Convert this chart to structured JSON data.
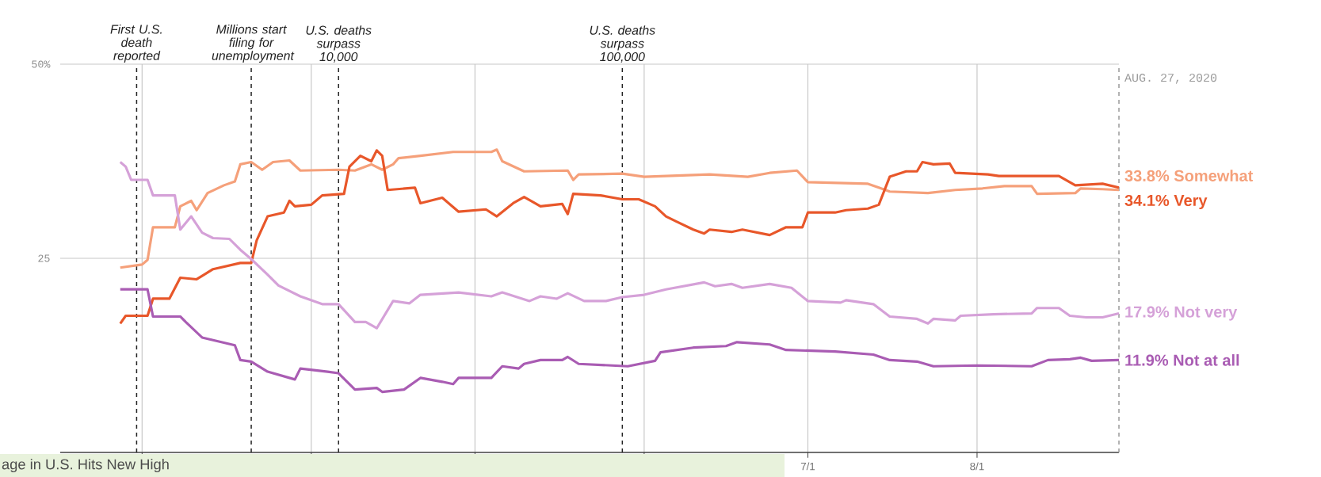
{
  "chart_data": {
    "type": "line",
    "xlim": [
      "2020-02-15",
      "2020-08-27"
    ],
    "ylim": [
      0,
      50
    ],
    "xticks": [
      {
        "value": "2020-03-01",
        "label": null
      },
      {
        "value": "2020-04-01",
        "label": null
      },
      {
        "value": "2020-05-01",
        "label": null
      },
      {
        "value": "2020-06-01",
        "label": null
      },
      {
        "value": "2020-07-01",
        "label": "7/1"
      },
      {
        "value": "2020-08-01",
        "label": "8/1"
      }
    ],
    "yticks": [
      {
        "value": 25,
        "label": "25"
      },
      {
        "value": 50,
        "label": "50%"
      }
    ],
    "grid": true,
    "series": [
      {
        "name": "Somewhat",
        "color": "#f5a07a",
        "x": [
          "2020-02-26",
          "2020-03-01",
          "2020-03-02",
          "2020-03-03",
          "2020-03-07",
          "2020-03-08",
          "2020-03-10",
          "2020-03-11",
          "2020-03-13",
          "2020-03-16",
          "2020-03-18",
          "2020-03-19",
          "2020-03-21",
          "2020-03-23",
          "2020-03-25",
          "2020-03-28",
          "2020-03-30",
          "2020-04-06",
          "2020-04-09",
          "2020-04-12",
          "2020-04-14",
          "2020-04-16",
          "2020-04-17",
          "2020-04-21",
          "2020-04-27",
          "2020-05-04",
          "2020-05-05",
          "2020-05-06",
          "2020-05-10",
          "2020-05-18",
          "2020-05-19",
          "2020-05-20",
          "2020-05-28",
          "2020-06-01",
          "2020-06-13",
          "2020-06-20",
          "2020-06-24",
          "2020-06-29",
          "2020-07-01",
          "2020-07-12",
          "2020-07-14",
          "2020-07-16",
          "2020-07-23",
          "2020-07-28",
          "2020-08-02",
          "2020-08-06",
          "2020-08-11",
          "2020-08-12",
          "2020-08-19",
          "2020-08-20",
          "2020-08-24",
          "2020-08-27"
        ],
        "values": [
          23.8,
          24.2,
          24.8,
          29.0,
          29.0,
          31.7,
          32.4,
          31.2,
          33.4,
          34.4,
          34.9,
          37.1,
          37.4,
          36.4,
          37.4,
          37.6,
          36.3,
          36.4,
          36.3,
          37.1,
          36.4,
          37.1,
          37.9,
          38.2,
          38.7,
          38.7,
          39.0,
          37.5,
          36.2,
          36.3,
          35.1,
          35.8,
          35.9,
          35.5,
          35.8,
          35.5,
          36.0,
          36.3,
          34.8,
          34.6,
          34.1,
          33.6,
          33.4,
          33.8,
          34.0,
          34.3,
          34.3,
          33.3,
          33.4,
          34.0,
          33.9,
          33.8
        ],
        "value_labels": [
          null,
          null,
          null,
          null,
          null,
          null,
          null,
          null,
          null,
          null,
          null,
          null,
          null,
          null,
          null,
          null,
          null,
          null,
          null,
          null,
          null,
          null,
          null,
          null,
          null,
          null,
          null,
          null,
          null,
          null,
          null,
          null,
          null,
          null,
          null,
          null,
          null,
          null,
          null,
          null,
          null,
          null,
          null,
          null,
          null,
          null,
          null,
          null,
          null,
          null,
          null,
          "33.8%"
        ]
      },
      {
        "name": "Very",
        "color": "#e8572a",
        "x": [
          "2020-02-26",
          "2020-02-27",
          "2020-03-02",
          "2020-03-03",
          "2020-03-06",
          "2020-03-08",
          "2020-03-11",
          "2020-03-14",
          "2020-03-19",
          "2020-03-21",
          "2020-03-22",
          "2020-03-24",
          "2020-03-27",
          "2020-03-28",
          "2020-03-29",
          "2020-04-01",
          "2020-04-03",
          "2020-04-07",
          "2020-04-08",
          "2020-04-10",
          "2020-04-12",
          "2020-04-13",
          "2020-04-14",
          "2020-04-15",
          "2020-04-20",
          "2020-04-21",
          "2020-04-25",
          "2020-04-28",
          "2020-05-03",
          "2020-05-05",
          "2020-05-08",
          "2020-05-10",
          "2020-05-13",
          "2020-05-17",
          "2020-05-18",
          "2020-05-19",
          "2020-05-24",
          "2020-05-28",
          "2020-05-31",
          "2020-06-03",
          "2020-06-05",
          "2020-06-07",
          "2020-06-10",
          "2020-06-12",
          "2020-06-13",
          "2020-06-17",
          "2020-06-19",
          "2020-06-24",
          "2020-06-27",
          "2020-06-30",
          "2020-07-01",
          "2020-07-06",
          "2020-07-08",
          "2020-07-12",
          "2020-07-14",
          "2020-07-16",
          "2020-07-19",
          "2020-07-21",
          "2020-07-22",
          "2020-07-24",
          "2020-07-27",
          "2020-07-28",
          "2020-08-03",
          "2020-08-05",
          "2020-08-16",
          "2020-08-19",
          "2020-08-24",
          "2020-08-27"
        ],
        "values": [
          16.6,
          17.6,
          17.6,
          19.8,
          19.8,
          22.5,
          22.3,
          23.6,
          24.4,
          24.4,
          27.3,
          30.4,
          30.9,
          32.4,
          31.7,
          31.9,
          33.1,
          33.3,
          36.8,
          38.2,
          37.5,
          38.9,
          38.2,
          33.8,
          34.1,
          32.1,
          32.8,
          31.0,
          31.3,
          30.4,
          32.1,
          32.9,
          31.7,
          32.0,
          30.7,
          33.3,
          33.1,
          32.6,
          32.6,
          31.7,
          30.4,
          29.7,
          28.7,
          28.2,
          28.7,
          28.4,
          28.7,
          28.0,
          29.0,
          29.0,
          30.9,
          30.9,
          31.2,
          31.4,
          31.9,
          35.5,
          36.2,
          36.2,
          37.4,
          37.1,
          37.2,
          36.0,
          35.8,
          35.6,
          35.6,
          34.4,
          34.6,
          34.1
        ],
        "value_labels": [
          null,
          null,
          null,
          null,
          null,
          null,
          null,
          null,
          null,
          null,
          null,
          null,
          null,
          null,
          null,
          null,
          null,
          null,
          null,
          null,
          null,
          null,
          null,
          null,
          null,
          null,
          null,
          null,
          null,
          null,
          null,
          null,
          null,
          null,
          null,
          null,
          null,
          null,
          null,
          null,
          null,
          null,
          null,
          null,
          null,
          null,
          null,
          null,
          null,
          null,
          null,
          null,
          null,
          null,
          null,
          null,
          null,
          null,
          null,
          null,
          null,
          null,
          null,
          null,
          null,
          null,
          null,
          "34.1%"
        ]
      },
      {
        "name": "Not very",
        "color": "#d5a1d8",
        "x": [
          "2020-02-26",
          "2020-02-27",
          "2020-02-28",
          "2020-03-02",
          "2020-03-03",
          "2020-03-07",
          "2020-03-08",
          "2020-03-10",
          "2020-03-12",
          "2020-03-14",
          "2020-03-17",
          "2020-03-19",
          "2020-03-21",
          "2020-03-24",
          "2020-03-26",
          "2020-03-30",
          "2020-04-03",
          "2020-04-06",
          "2020-04-09",
          "2020-04-11",
          "2020-04-13",
          "2020-04-16",
          "2020-04-19",
          "2020-04-21",
          "2020-04-28",
          "2020-05-04",
          "2020-05-06",
          "2020-05-11",
          "2020-05-13",
          "2020-05-16",
          "2020-05-18",
          "2020-05-21",
          "2020-05-25",
          "2020-05-28",
          "2020-06-01",
          "2020-06-05",
          "2020-06-12",
          "2020-06-14",
          "2020-06-17",
          "2020-06-19",
          "2020-06-24",
          "2020-06-28",
          "2020-07-01",
          "2020-07-07",
          "2020-07-08",
          "2020-07-13",
          "2020-07-16",
          "2020-07-21",
          "2020-07-23",
          "2020-07-24",
          "2020-07-28",
          "2020-07-29",
          "2020-08-04",
          "2020-08-11",
          "2020-08-12",
          "2020-08-16",
          "2020-08-18",
          "2020-08-21",
          "2020-08-24",
          "2020-08-27"
        ],
        "values": [
          37.4,
          36.8,
          35.1,
          35.1,
          33.1,
          33.1,
          28.7,
          30.4,
          28.3,
          27.6,
          27.5,
          26.1,
          24.9,
          22.9,
          21.5,
          20.1,
          19.1,
          19.1,
          16.8,
          16.8,
          16.0,
          19.5,
          19.2,
          20.3,
          20.6,
          20.1,
          20.6,
          19.5,
          20.1,
          19.8,
          20.5,
          19.5,
          19.5,
          20.0,
          20.3,
          21.0,
          21.9,
          21.4,
          21.7,
          21.2,
          21.7,
          21.2,
          19.5,
          19.3,
          19.6,
          19.1,
          17.5,
          17.2,
          16.6,
          17.2,
          17.0,
          17.6,
          17.8,
          17.9,
          18.6,
          18.6,
          17.6,
          17.4,
          17.4,
          17.9
        ],
        "value_labels": [
          null,
          null,
          null,
          null,
          null,
          null,
          null,
          null,
          null,
          null,
          null,
          null,
          null,
          null,
          null,
          null,
          null,
          null,
          null,
          null,
          null,
          null,
          null,
          null,
          null,
          null,
          null,
          null,
          null,
          null,
          null,
          null,
          null,
          null,
          null,
          null,
          null,
          null,
          null,
          null,
          null,
          null,
          null,
          null,
          null,
          null,
          null,
          null,
          null,
          null,
          null,
          null,
          null,
          null,
          null,
          null,
          null,
          null,
          null,
          "17.9%"
        ]
      },
      {
        "name": "Not at all",
        "color": "#a95cb3",
        "x": [
          "2020-02-26",
          "2020-03-02",
          "2020-03-03",
          "2020-03-08",
          "2020-03-09",
          "2020-03-12",
          "2020-03-18",
          "2020-03-19",
          "2020-03-21",
          "2020-03-24",
          "2020-03-29",
          "2020-03-30",
          "2020-04-04",
          "2020-04-06",
          "2020-04-09",
          "2020-04-13",
          "2020-04-14",
          "2020-04-18",
          "2020-04-21",
          "2020-04-25",
          "2020-04-27",
          "2020-04-28",
          "2020-05-04",
          "2020-05-06",
          "2020-05-09",
          "2020-05-10",
          "2020-05-13",
          "2020-05-17",
          "2020-05-18",
          "2020-05-20",
          "2020-05-29",
          "2020-06-03",
          "2020-06-04",
          "2020-06-10",
          "2020-06-16",
          "2020-06-18",
          "2020-06-24",
          "2020-06-27",
          "2020-07-06",
          "2020-07-13",
          "2020-07-16",
          "2020-07-21",
          "2020-07-24",
          "2020-08-01",
          "2020-08-11",
          "2020-08-14",
          "2020-08-18",
          "2020-08-20",
          "2020-08-22",
          "2020-08-27"
        ],
        "values": [
          21.0,
          21.0,
          17.5,
          17.5,
          16.8,
          14.8,
          13.8,
          11.9,
          11.7,
          10.4,
          9.4,
          10.8,
          10.4,
          10.2,
          8.1,
          8.3,
          7.8,
          8.1,
          9.6,
          9.1,
          8.8,
          9.6,
          9.6,
          11.1,
          10.8,
          11.4,
          11.9,
          11.9,
          12.3,
          11.4,
          11.1,
          11.8,
          12.9,
          13.5,
          13.7,
          14.2,
          13.9,
          13.2,
          13.0,
          12.6,
          11.9,
          11.7,
          11.1,
          11.2,
          11.1,
          11.9,
          12.0,
          12.2,
          11.8,
          11.9
        ],
        "value_labels": [
          null,
          null,
          null,
          null,
          null,
          null,
          null,
          null,
          null,
          null,
          null,
          null,
          null,
          null,
          null,
          null,
          null,
          null,
          null,
          null,
          null,
          null,
          null,
          null,
          null,
          null,
          null,
          null,
          null,
          null,
          null,
          null,
          null,
          null,
          null,
          null,
          null,
          null,
          null,
          null,
          null,
          null,
          null,
          null,
          null,
          null,
          null,
          null,
          null,
          "11.9%"
        ]
      }
    ],
    "ref_lines": [
      {
        "axis": "x",
        "value": "2020-02-29",
        "label": "First U.S. death reported",
        "color": "#222222",
        "line_style": "dashed"
      },
      {
        "axis": "x",
        "value": "2020-03-21",
        "label": "Millions start filing for unemployment",
        "color": "#222222",
        "line_style": "dashed"
      },
      {
        "axis": "x",
        "value": "2020-04-06",
        "label": "U.S. deaths surpass 10,000",
        "color": "#222222",
        "line_style": "dashed"
      },
      {
        "axis": "x",
        "value": "2020-05-28",
        "label": "U.S. deaths surpass 100,000",
        "color": "#222222",
        "line_style": "dashed"
      },
      {
        "axis": "x",
        "value": "2020-08-27",
        "label": "AUG. 27, 2020",
        "color": "#9a9a9a",
        "line_style": "dashed"
      }
    ],
    "annotations": [
      "age in U.S. Hits New High"
    ]
  }
}
